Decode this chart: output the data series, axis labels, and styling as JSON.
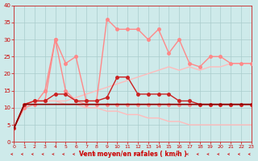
{
  "xlabel": "Vent moyen/en rafales ( km/h )",
  "ylim": [
    0,
    40
  ],
  "xlim": [
    0,
    23
  ],
  "yticks": [
    0,
    5,
    10,
    15,
    20,
    25,
    30,
    35,
    40
  ],
  "xticks": [
    0,
    1,
    2,
    3,
    4,
    5,
    6,
    7,
    8,
    9,
    10,
    11,
    12,
    13,
    14,
    15,
    16,
    17,
    18,
    19,
    20,
    21,
    22,
    23
  ],
  "bg_color": "#ceeaea",
  "grid_color": "#aacccc",
  "line_dark_solid_x": [
    0,
    1,
    2,
    3,
    4,
    5,
    6,
    7,
    8,
    9,
    10,
    11,
    12,
    13,
    14,
    15,
    16,
    17,
    18,
    19,
    20,
    21,
    22,
    23
  ],
  "line_dark_solid_y": [
    4,
    11,
    11,
    11,
    11,
    11,
    11,
    11,
    11,
    11,
    11,
    11,
    11,
    11,
    11,
    11,
    11,
    11,
    11,
    11,
    11,
    11,
    11,
    11
  ],
  "line_dark_solid_color": "#880000",
  "line_dark_solid_lw": 1.2,
  "line_med_dot_x": [
    0,
    1,
    2,
    3,
    4,
    5,
    6,
    7,
    8,
    9,
    10,
    11,
    12,
    13,
    14,
    15,
    16,
    17,
    18,
    19,
    20,
    21,
    22,
    23
  ],
  "line_med_dot_y": [
    4,
    11,
    12,
    12,
    14,
    14,
    12,
    12,
    12,
    13,
    19,
    19,
    14,
    14,
    14,
    14,
    12,
    12,
    11,
    11,
    11,
    11,
    11,
    11
  ],
  "line_med_dot_color": "#cc2222",
  "line_med_dot_lw": 1.0,
  "line_med_dot_marker": "o",
  "line_med_dot_ms": 2.5,
  "line_pink_upper_x": [
    0,
    1,
    2,
    3,
    4,
    5,
    6,
    7,
    8,
    9,
    10,
    11,
    12,
    13,
    14,
    15,
    16,
    17,
    18,
    19,
    20,
    21,
    22,
    23
  ],
  "line_pink_upper_y": [
    4,
    11,
    12,
    12,
    30,
    23,
    25,
    12,
    12,
    36,
    33,
    33,
    33,
    30,
    33,
    26,
    30,
    23,
    22,
    25,
    25,
    23,
    23,
    23
  ],
  "line_pink_upper_color": "#ff8888",
  "line_pink_upper_lw": 1.0,
  "line_pink_upper_marker": "o",
  "line_pink_upper_ms": 2.5,
  "line_pink_tri_x": [
    0,
    1,
    2,
    3,
    4,
    5,
    6,
    7,
    8,
    9,
    10,
    11,
    12,
    13,
    14,
    15,
    16,
    17,
    18,
    19,
    20,
    21,
    22,
    23
  ],
  "line_pink_tri_y": [
    4,
    10,
    11,
    15,
    30,
    15,
    12,
    11,
    11,
    11,
    11,
    11,
    11,
    11,
    11,
    11,
    11,
    11,
    11,
    11,
    11,
    11,
    11,
    11
  ],
  "line_pink_tri_color": "#ff8888",
  "line_pink_tri_lw": 1.0,
  "line_pink_tri_marker": "o",
  "line_pink_tri_ms": 2.5,
  "line_pale_asc_x": [
    0,
    1,
    2,
    3,
    4,
    5,
    6,
    7,
    8,
    9,
    10,
    11,
    12,
    13,
    14,
    15,
    16,
    17,
    18,
    19,
    20,
    21,
    22,
    23
  ],
  "line_pale_asc_y": [
    4,
    11,
    12,
    12,
    12,
    12,
    13,
    14,
    15,
    16,
    17,
    18,
    19,
    20,
    21,
    22,
    21,
    22,
    21,
    22,
    22,
    23,
    23,
    23
  ],
  "line_pale_asc_color": "#ffbbbb",
  "line_pale_asc_lw": 1.0,
  "line_pale_desc_x": [
    0,
    1,
    2,
    3,
    4,
    5,
    6,
    7,
    8,
    9,
    10,
    11,
    12,
    13,
    14,
    15,
    16,
    17,
    18,
    19,
    20,
    21,
    22,
    23
  ],
  "line_pale_desc_y": [
    4,
    11,
    12,
    12,
    12,
    11,
    11,
    10,
    10,
    9,
    9,
    8,
    8,
    7,
    7,
    6,
    6,
    5,
    5,
    5,
    5,
    5,
    5,
    5
  ],
  "line_pale_desc_color": "#ffbbbb",
  "line_pale_desc_lw": 1.0,
  "arrow_color": "#cc2222",
  "arrow_lw": 0.5
}
